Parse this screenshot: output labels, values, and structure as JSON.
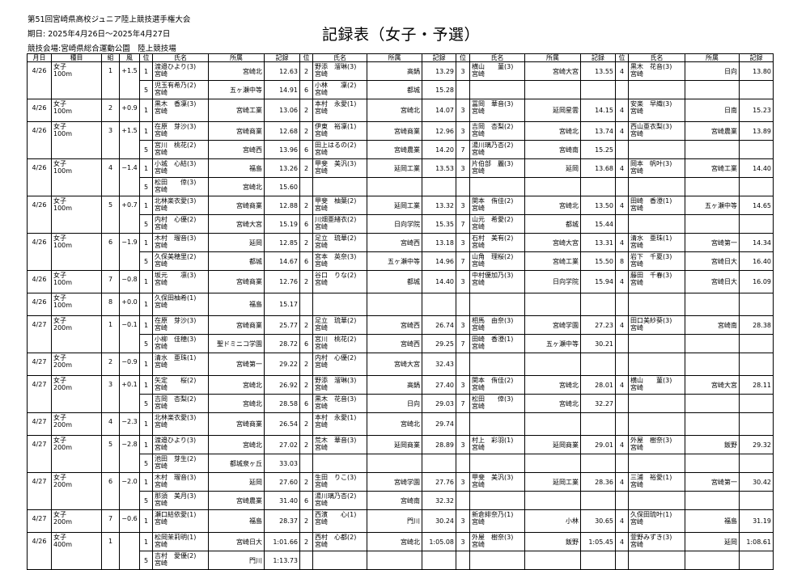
{
  "meet_name": "第51回宮崎県高校ジュニア陸上競技選手権大会",
  "dates": "期日: 2025年4月26日～2025年4月27日",
  "venue": "競技会場:宮崎県総合運動公園　陸上競技場",
  "title": "記録表（女子・予選）",
  "headers": [
    "月日",
    "種目",
    "組",
    "風",
    "位",
    "氏名",
    "所属",
    "記録",
    "位",
    "氏名",
    "所属",
    "記録",
    "位",
    "氏名",
    "所属",
    "記録",
    "位",
    "氏名",
    "所属",
    "記録"
  ],
  "heats": [
    {
      "date": "4/26",
      "gender": "女子",
      "event": "100m",
      "heat": "1",
      "wind": "+1.5",
      "lines": [
        [
          [
            "1",
            "渡邉ひより(3)",
            "宮崎",
            "宮崎北",
            "12.63"
          ],
          [
            "2",
            "野添　溜琳(3)",
            "宮崎",
            "高鍋",
            "13.29"
          ],
          [
            "3",
            "横山　　菫(3)",
            "宮崎",
            "宮崎大宮",
            "13.55"
          ],
          [
            "4",
            "黒木　花音(3)",
            "宮崎",
            "日向",
            "13.80"
          ]
        ],
        [
          [
            "5",
            "児玉有希乃(2)",
            "宮崎",
            "五ヶ瀬中等",
            "14.91"
          ],
          [
            "6",
            "小林　　凜(2)",
            "宮崎",
            "都城",
            "15.28"
          ]
        ]
      ]
    },
    {
      "date": "4/26",
      "gender": "女子",
      "event": "100m",
      "heat": "2",
      "wind": "+0.9",
      "lines": [
        [
          [
            "1",
            "黒木　香凜(3)",
            "宮崎",
            "宮崎工業",
            "13.06"
          ],
          [
            "2",
            "本村　永愛(1)",
            "宮崎",
            "宮崎北",
            "14.07"
          ],
          [
            "3",
            "冨岡　華音(3)",
            "宮崎",
            "延岡星雲",
            "14.15"
          ],
          [
            "4",
            "安楽　早織(3)",
            "宮崎",
            "日南",
            "15.23"
          ]
        ]
      ]
    },
    {
      "date": "4/26",
      "gender": "女子",
      "event": "100m",
      "heat": "3",
      "wind": "+1.5",
      "lines": [
        [
          [
            "1",
            "在原　芽沙(3)",
            "宮崎",
            "宮崎商業",
            "12.68"
          ],
          [
            "2",
            "伊東　裕凜(1)",
            "宮崎",
            "宮崎商業",
            "12.96"
          ],
          [
            "3",
            "吉岡　杏梨(2)",
            "宮崎",
            "宮崎北",
            "13.74"
          ],
          [
            "4",
            "西山亜衣梨(3)",
            "宮崎",
            "宮崎農業",
            "13.89"
          ]
        ],
        [
          [
            "5",
            "宮川　桃花(2)",
            "宮崎",
            "宮崎西",
            "13.96"
          ],
          [
            "6",
            "田上はるの(2)",
            "宮崎",
            "宮崎農業",
            "14.20"
          ],
          [
            "7",
            "湯川璃乃杏(2)",
            "宮崎",
            "宮崎南",
            "15.25"
          ]
        ]
      ]
    },
    {
      "date": "4/26",
      "gender": "女子",
      "event": "100m",
      "heat": "4",
      "wind": "−1.4",
      "lines": [
        [
          [
            "1",
            "小城　心結(3)",
            "宮崎",
            "福島",
            "13.26"
          ],
          [
            "2",
            "甲斐　美汎(3)",
            "宮崎",
            "延岡工業",
            "13.53"
          ],
          [
            "3",
            "片伯部　麗(3)",
            "宮崎",
            "延岡",
            "13.68"
          ],
          [
            "4",
            "岡本　帆叶(3)",
            "宮崎",
            "宮崎工業",
            "14.40"
          ]
        ],
        [
          [
            "5",
            "松田　　倖(3)",
            "宮崎",
            "宮崎北",
            "15.60"
          ]
        ]
      ]
    },
    {
      "date": "4/26",
      "gender": "女子",
      "event": "100m",
      "heat": "5",
      "wind": "+0.7",
      "lines": [
        [
          [
            "1",
            "北林楽衣愛(3)",
            "宮崎",
            "宮崎商業",
            "12.88"
          ],
          [
            "2",
            "甲斐　柚葉(2)",
            "宮崎",
            "延岡工業",
            "13.32"
          ],
          [
            "3",
            "関本　侑佳(2)",
            "宮崎",
            "宮崎北",
            "13.50"
          ],
          [
            "4",
            "田崎　香澄(1)",
            "宮崎",
            "五ヶ瀬中等",
            "14.65"
          ]
        ],
        [
          [
            "5",
            "内村　心優(2)",
            "宮崎",
            "宮崎大宮",
            "15.19"
          ],
          [
            "6",
            "川畑亜緒衣(2)",
            "宮崎",
            "日向学院",
            "15.35"
          ],
          [
            "7",
            "山元　希愛(2)",
            "宮崎",
            "都城",
            "15.44"
          ]
        ]
      ]
    },
    {
      "date": "4/26",
      "gender": "女子",
      "event": "100m",
      "heat": "6",
      "wind": "−1.9",
      "lines": [
        [
          [
            "1",
            "木村　瑠音(3)",
            "宮崎",
            "延岡",
            "12.85"
          ],
          [
            "2",
            "足立　琉華(2)",
            "宮崎",
            "宮崎西",
            "13.18"
          ],
          [
            "3",
            "石村　美有(2)",
            "宮崎",
            "宮崎大宮",
            "13.31"
          ],
          [
            "4",
            "清水　亜珠(1)",
            "宮崎",
            "宮崎第一",
            "14.34"
          ]
        ],
        [
          [
            "5",
            "久保美穂里(2)",
            "宮崎",
            "都城",
            "14.67"
          ],
          [
            "6",
            "宮本　英奈(3)",
            "宮崎",
            "五ヶ瀬中等",
            "14.96"
          ],
          [
            "7",
            "山角　理桜(2)",
            "宮崎",
            "宮崎工業",
            "15.50"
          ],
          [
            "8",
            "岩下　千夏(3)",
            "宮崎",
            "宮崎日大",
            "16.40"
          ]
        ]
      ]
    },
    {
      "date": "4/26",
      "gender": "女子",
      "event": "100m",
      "heat": "7",
      "wind": "−0.8",
      "lines": [
        [
          [
            "1",
            "坂元　　凛(3)",
            "宮崎",
            "宮崎商業",
            "12.76"
          ],
          [
            "2",
            "谷口　りな(2)",
            "宮崎",
            "都城",
            "14.40"
          ],
          [
            "3",
            "中村優加乃(3)",
            "宮崎",
            "日向学院",
            "15.94"
          ],
          [
            "4",
            "藤田　千春(3)",
            "宮崎",
            "宮崎日大",
            "16.09"
          ]
        ]
      ]
    },
    {
      "date": "4/26",
      "gender": "女子",
      "event": "100m",
      "heat": "8",
      "wind": "+0.0",
      "lines": [
        [
          [
            "1",
            "久保田柚希(1)",
            "宮崎",
            "福島",
            "15.17"
          ]
        ]
      ]
    },
    {
      "date": "4/27",
      "gender": "女子",
      "event": "200m",
      "heat": "1",
      "wind": "−0.1",
      "lines": [
        [
          [
            "1",
            "在原　芽沙(3)",
            "宮崎",
            "宮崎商業",
            "25.77"
          ],
          [
            "2",
            "足立　琉華(2)",
            "宮崎",
            "宮崎西",
            "26.74"
          ],
          [
            "3",
            "相馬　由奈(3)",
            "宮崎",
            "宮崎学園",
            "27.23"
          ],
          [
            "4",
            "田口美紗葵(3)",
            "宮崎",
            "宮崎南",
            "28.38"
          ]
        ],
        [
          [
            "5",
            "小柳　佳穂(3)",
            "宮崎",
            "聖ドミニコ学園",
            "28.72"
          ],
          [
            "6",
            "宮川　桃花(2)",
            "宮崎",
            "宮崎西",
            "29.25"
          ],
          [
            "7",
            "田崎　香澄(1)",
            "宮崎",
            "五ヶ瀬中等",
            "30.21"
          ]
        ]
      ]
    },
    {
      "date": "4/27",
      "gender": "女子",
      "event": "200m",
      "heat": "2",
      "wind": "−0.9",
      "lines": [
        [
          [
            "1",
            "清水　亜珠(1)",
            "宮崎",
            "宮崎第一",
            "29.22"
          ],
          [
            "2",
            "内村　心優(2)",
            "宮崎",
            "宮崎大宮",
            "32.43"
          ]
        ]
      ]
    },
    {
      "date": "4/27",
      "gender": "女子",
      "event": "200m",
      "heat": "3",
      "wind": "+0.1",
      "lines": [
        [
          [
            "1",
            "矢定　　桜(2)",
            "宮崎",
            "宮崎北",
            "26.92"
          ],
          [
            "2",
            "野添　溜琳(3)",
            "宮崎",
            "高鍋",
            "27.40"
          ],
          [
            "3",
            "関本　侑佳(2)",
            "宮崎",
            "宮崎北",
            "28.01"
          ],
          [
            "4",
            "横山　　菫(3)",
            "宮崎",
            "宮崎大宮",
            "28.11"
          ]
        ],
        [
          [
            "5",
            "吉岡　杏梨(2)",
            "宮崎",
            "宮崎北",
            "28.58"
          ],
          [
            "6",
            "黒木　花音(3)",
            "宮崎",
            "日向",
            "29.03"
          ],
          [
            "7",
            "松田　　倖(3)",
            "宮崎",
            "宮崎北",
            "32.27"
          ]
        ]
      ]
    },
    {
      "date": "4/27",
      "gender": "女子",
      "event": "200m",
      "heat": "4",
      "wind": "−2.3",
      "lines": [
        [
          [
            "1",
            "北林楽衣愛(3)",
            "宮崎",
            "宮崎商業",
            "26.54"
          ],
          [
            "2",
            "本村　永愛(1)",
            "宮崎",
            "宮崎北",
            "29.74"
          ]
        ]
      ]
    },
    {
      "date": "4/27",
      "gender": "女子",
      "event": "200m",
      "heat": "5",
      "wind": "−2.8",
      "lines": [
        [
          [
            "1",
            "渡邉ひより(3)",
            "宮崎",
            "宮崎北",
            "27.02"
          ],
          [
            "2",
            "荒木　華音(3)",
            "宮崎",
            "延岡商業",
            "28.89"
          ],
          [
            "3",
            "村上　彩羽(1)",
            "宮崎",
            "延岡商業",
            "29.01"
          ],
          [
            "4",
            "外屋　樹奈(3)",
            "宮崎",
            "飯野",
            "29.32"
          ]
        ],
        [
          [
            "5",
            "池田　芽生(2)",
            "宮崎",
            "都城泉ヶ丘",
            "33.03"
          ]
        ]
      ]
    },
    {
      "date": "4/27",
      "gender": "女子",
      "event": "200m",
      "heat": "6",
      "wind": "−2.0",
      "lines": [
        [
          [
            "1",
            "木村　瑠音(3)",
            "宮崎",
            "延岡",
            "27.60"
          ],
          [
            "2",
            "生田　りこ(3)",
            "宮崎",
            "宮崎学園",
            "27.76"
          ],
          [
            "3",
            "甲斐　美汎(3)",
            "宮崎",
            "延岡工業",
            "28.36"
          ],
          [
            "4",
            "三浦　裕愛(1)",
            "宮崎",
            "宮崎第一",
            "30.42"
          ]
        ],
        [
          [
            "5",
            "那須　美月(3)",
            "宮崎",
            "宮崎農業",
            "31.40"
          ],
          [
            "6",
            "湯川璃乃杏(2)",
            "宮崎",
            "宮崎南",
            "32.32"
          ]
        ]
      ]
    },
    {
      "date": "4/27",
      "gender": "女子",
      "event": "200m",
      "heat": "7",
      "wind": "−0.6",
      "lines": [
        [
          [
            "1",
            "瀬口結依愛(1)",
            "宮崎",
            "福島",
            "28.37"
          ],
          [
            "2",
            "西濱　　心(1)",
            "宮崎",
            "門川",
            "30.24"
          ],
          [
            "3",
            "新倉緋奈乃(1)",
            "宮崎",
            "小林",
            "30.65"
          ],
          [
            "4",
            "久保田琉叶(1)",
            "宮崎",
            "福島",
            "31.19"
          ]
        ]
      ]
    },
    {
      "date": "4/26",
      "gender": "女子",
      "event": "400m",
      "heat": "1",
      "wind": "",
      "lines": [
        [
          [
            "1",
            "松岡茉莉明(1)",
            "宮崎",
            "宮崎日大",
            "1:01.66"
          ],
          [
            "2",
            "西村　心都(2)",
            "宮崎",
            "宮崎北",
            "1:05.08"
          ],
          [
            "3",
            "外屋　樹奈(3)",
            "宮崎",
            "飯野",
            "1:05.45"
          ],
          [
            "4",
            "萱野みずき(3)",
            "宮崎",
            "延岡",
            "1:08.61"
          ]
        ],
        [
          [
            "5",
            "吉村　愛優(2)",
            "宮崎",
            "門川",
            "1:13.73"
          ]
        ]
      ]
    }
  ]
}
